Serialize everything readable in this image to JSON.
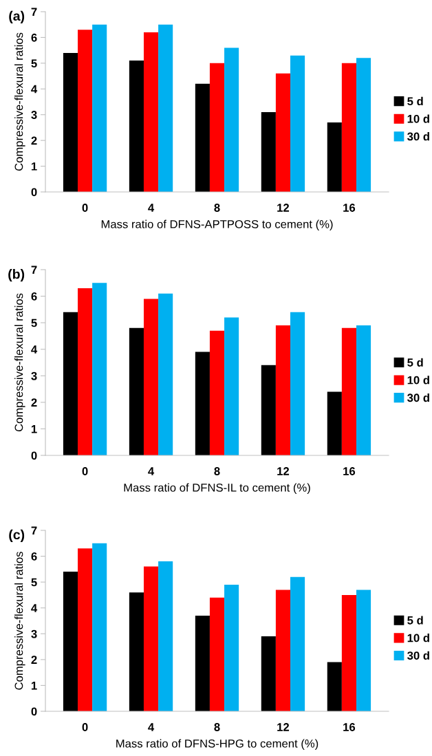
{
  "chart_data": [
    {
      "type": "bar",
      "title": "(a)",
      "xlabel": "Mass ratio of DFNS-APTPOSS to cement (%)",
      "ylabel": "Compressive-flexural ratios",
      "categories": [
        "0",
        "4",
        "8",
        "12",
        "16"
      ],
      "ylim": [
        0,
        7
      ],
      "yticks": [
        0,
        1,
        2,
        3,
        4,
        5,
        6,
        7
      ],
      "grid": false,
      "legend": "right",
      "series": [
        {
          "name": "5 d",
          "color": "#000000",
          "values": [
            5.4,
            5.1,
            4.2,
            3.1,
            2.7
          ]
        },
        {
          "name": "10 d",
          "color": "#ff0000",
          "values": [
            6.3,
            6.2,
            5.0,
            4.6,
            5.0
          ]
        },
        {
          "name": "30 d",
          "color": "#00b0f0",
          "values": [
            6.5,
            6.5,
            5.6,
            5.3,
            5.2
          ]
        }
      ]
    },
    {
      "type": "bar",
      "title": "(b)",
      "xlabel": "Mass ratio of DFNS-IL to cement (%)",
      "ylabel": "Compressive-flexural ratios",
      "categories": [
        "0",
        "4",
        "8",
        "12",
        "16"
      ],
      "ylim": [
        0,
        7
      ],
      "yticks": [
        0,
        1,
        2,
        3,
        4,
        5,
        6,
        7
      ],
      "grid": false,
      "legend": "right",
      "series": [
        {
          "name": "5 d",
          "color": "#000000",
          "values": [
            5.4,
            4.8,
            3.9,
            3.4,
            2.4
          ]
        },
        {
          "name": "10 d",
          "color": "#ff0000",
          "values": [
            6.3,
            5.9,
            4.7,
            4.9,
            4.8
          ]
        },
        {
          "name": "30 d",
          "color": "#00b0f0",
          "values": [
            6.5,
            6.1,
            5.2,
            5.4,
            4.9
          ]
        }
      ]
    },
    {
      "type": "bar",
      "title": "(c)",
      "xlabel": "Mass ratio of DFNS-HPG to cement (%)",
      "ylabel": "Compressive-flexural ratios",
      "categories": [
        "0",
        "4",
        "8",
        "12",
        "16"
      ],
      "ylim": [
        0,
        7
      ],
      "yticks": [
        0,
        1,
        2,
        3,
        4,
        5,
        6,
        7
      ],
      "grid": false,
      "legend": "right",
      "series": [
        {
          "name": "5 d",
          "color": "#000000",
          "values": [
            5.4,
            4.6,
            3.7,
            2.9,
            1.9
          ]
        },
        {
          "name": "10 d",
          "color": "#ff0000",
          "values": [
            6.3,
            5.6,
            4.4,
            4.7,
            4.5
          ]
        },
        {
          "name": "30 d",
          "color": "#00b0f0",
          "values": [
            6.5,
            5.8,
            4.9,
            5.2,
            4.7
          ]
        }
      ]
    }
  ]
}
